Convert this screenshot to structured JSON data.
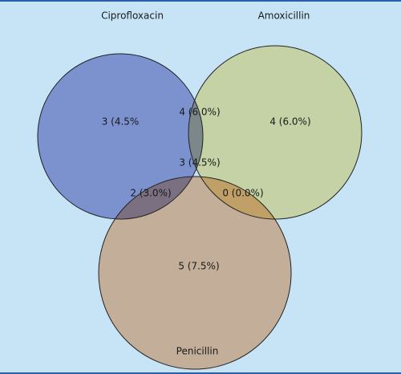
{
  "chart_data": {
    "type": "venn",
    "sets": [
      {
        "name": "Ciprofloxacin",
        "color": "#8f93d0"
      },
      {
        "name": "Amoxicillin",
        "color": "#fde89c"
      },
      {
        "name": "Penicillin",
        "color": "#fbb98e"
      }
    ],
    "values": [
      3,
      4,
      4,
      3,
      2,
      0,
      5
    ],
    "value_labels": [
      "3 (4.5%",
      "4 (6.0%)",
      "4 (6.0%)",
      "3 (4.5%)",
      "2 (3.0%)",
      "0 (0.0%)",
      "5 (7.5%)"
    ]
  }
}
